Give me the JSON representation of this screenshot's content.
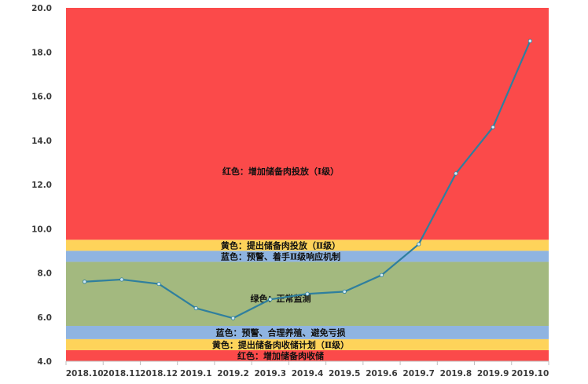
{
  "chart_data": {
    "type": "line",
    "title": "",
    "xlabel": "",
    "ylabel": "",
    "ylim": [
      4.0,
      20.0
    ],
    "y_ticks": [
      "4.0",
      "6.0",
      "8.0",
      "10.0",
      "12.0",
      "14.0",
      "16.0",
      "18.0",
      "20.0"
    ],
    "categories": [
      "2018.10",
      "2018.11",
      "2018.12",
      "2019.1",
      "2019.2",
      "2019.3",
      "2019.4",
      "2019.5",
      "2019.6",
      "2019.7",
      "2019.8",
      "2019.9",
      "2019.10"
    ],
    "series": [
      {
        "values": [
          7.6,
          7.7,
          7.5,
          6.4,
          5.95,
          6.8,
          7.05,
          7.15,
          7.9,
          9.3,
          12.5,
          14.6,
          18.5
        ]
      }
    ],
    "bands": [
      {
        "from": 4.0,
        "to": 4.5,
        "color": "#fb4a4a",
        "label": "红色：增加储备肉收储"
      },
      {
        "from": 4.5,
        "to": 5.0,
        "color": "#fed35a",
        "label": "黄色：提出储备肉收储计划（Ⅱ级）"
      },
      {
        "from": 5.0,
        "to": 5.6,
        "color": "#8fb4e1",
        "label": "蓝色：预警、合理养殖、避免亏损"
      },
      {
        "from": 5.6,
        "to": 8.5,
        "color": "#a3b97f",
        "label": "绿色：正常监测"
      },
      {
        "from": 8.5,
        "to": 9.0,
        "color": "#8fb4e1",
        "label": "蓝色：预警、着手Ⅱ级响应机制"
      },
      {
        "from": 9.0,
        "to": 9.5,
        "color": "#fed35a",
        "label": "黄色：提出储备肉投放（Ⅱ级）"
      },
      {
        "from": 9.5,
        "to": 20.0,
        "color": "#fb4a4a",
        "label": "红色：增加储备肉投放（Ⅰ级）"
      }
    ],
    "grid": false,
    "legend": "none",
    "line_color": "#2f7f9e"
  }
}
